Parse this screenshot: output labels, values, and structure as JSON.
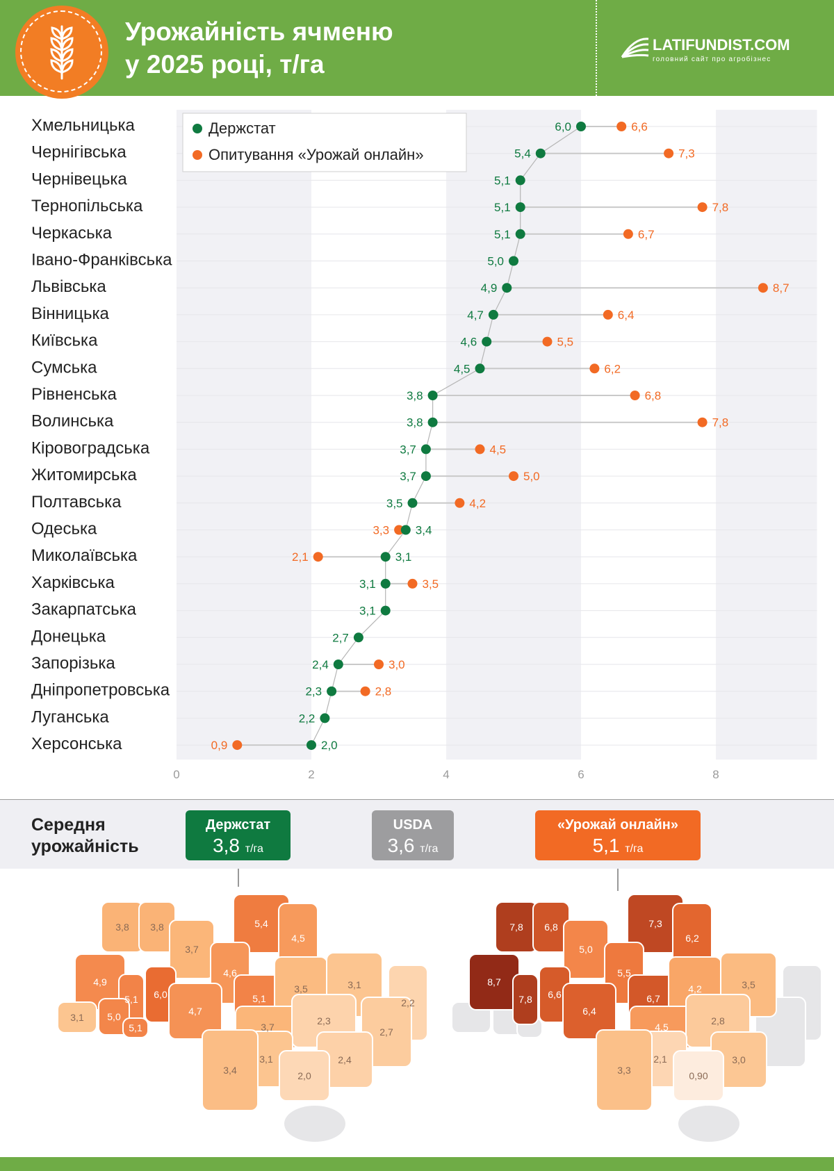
{
  "header": {
    "title_line1": "Урожайність ячменю",
    "title_line2": "у 2025 році, т/га",
    "brand_name": "LATIFUNDIST.COM",
    "brand_tagline": "головний сайт про агробізнес",
    "icon": "wheat-icon"
  },
  "colors": {
    "green": "#6fac46",
    "derzhstat": "#0f7a40",
    "survey": "#f26a24",
    "usda": "#9d9d9f",
    "connector": "#c9c9c9"
  },
  "chart_data": {
    "type": "dot-plot",
    "xlim": [
      0,
      9.5
    ],
    "x_ticks": [
      0,
      2,
      4,
      6,
      8
    ],
    "legend_position": "top-left",
    "legend": [
      "Держстат",
      "Опитування «Урожай онлайн»"
    ],
    "rows": [
      {
        "region": "Хмельницька",
        "derzhstat": 6.0,
        "derzhstat_label": "6,0",
        "survey": 6.6,
        "survey_label": "6,6"
      },
      {
        "region": "Чернігівська",
        "derzhstat": 5.4,
        "derzhstat_label": "5,4",
        "survey": 7.3,
        "survey_label": "7,3"
      },
      {
        "region": "Чернівецька",
        "derzhstat": 5.1,
        "derzhstat_label": "5,1",
        "survey": null,
        "survey_label": ""
      },
      {
        "region": "Тернопільська",
        "derzhstat": 5.1,
        "derzhstat_label": "5,1",
        "survey": 7.8,
        "survey_label": "7,8"
      },
      {
        "region": "Черкаська",
        "derzhstat": 5.1,
        "derzhstat_label": "5,1",
        "survey": 6.7,
        "survey_label": "6,7"
      },
      {
        "region": "Івано-Франківська",
        "derzhstat": 5.0,
        "derzhstat_label": "5,0",
        "survey": null,
        "survey_label": ""
      },
      {
        "region": "Львівська",
        "derzhstat": 4.9,
        "derzhstat_label": "4,9",
        "survey": 8.7,
        "survey_label": "8,7"
      },
      {
        "region": "Вінницька",
        "derzhstat": 4.7,
        "derzhstat_label": "4,7",
        "survey": 6.4,
        "survey_label": "6,4"
      },
      {
        "region": "Київська",
        "derzhstat": 4.6,
        "derzhstat_label": "4,6",
        "survey": 5.5,
        "survey_label": "5,5"
      },
      {
        "region": "Сумська",
        "derzhstat": 4.5,
        "derzhstat_label": "4,5",
        "survey": 6.2,
        "survey_label": "6,2"
      },
      {
        "region": "Рівненська",
        "derzhstat": 3.8,
        "derzhstat_label": "3,8",
        "survey": 6.8,
        "survey_label": "6,8"
      },
      {
        "region": "Волинська",
        "derzhstat": 3.8,
        "derzhstat_label": "3,8",
        "survey": 7.8,
        "survey_label": "7,8"
      },
      {
        "region": "Кіровоградська",
        "derzhstat": 3.7,
        "derzhstat_label": "3,7",
        "survey": 4.5,
        "survey_label": "4,5"
      },
      {
        "region": "Житомирська",
        "derzhstat": 3.7,
        "derzhstat_label": "3,7",
        "survey": 5.0,
        "survey_label": "5,0"
      },
      {
        "region": "Полтавська",
        "derzhstat": 3.5,
        "derzhstat_label": "3,5",
        "survey": 4.2,
        "survey_label": "4,2"
      },
      {
        "region": "Одеська",
        "derzhstat": 3.4,
        "derzhstat_label": "3,4",
        "survey": 3.3,
        "survey_label": "3,3"
      },
      {
        "region": "Миколаївська",
        "derzhstat": 3.1,
        "derzhstat_label": "3,1",
        "survey": 2.1,
        "survey_label": "2,1"
      },
      {
        "region": "Харківська",
        "derzhstat": 3.1,
        "derzhstat_label": "3,1",
        "survey": 3.5,
        "survey_label": "3,5"
      },
      {
        "region": "Закарпатська",
        "derzhstat": 3.1,
        "derzhstat_label": "3,1",
        "survey": null,
        "survey_label": ""
      },
      {
        "region": "Донецька",
        "derzhstat": 2.7,
        "derzhstat_label": "2,7",
        "survey": null,
        "survey_label": ""
      },
      {
        "region": "Запорізька",
        "derzhstat": 2.4,
        "derzhstat_label": "2,4",
        "survey": 3.0,
        "survey_label": "3,0"
      },
      {
        "region": "Дніпропетровська",
        "derzhstat": 2.3,
        "derzhstat_label": "2,3",
        "survey": 2.8,
        "survey_label": "2,8"
      },
      {
        "region": "Луганська",
        "derzhstat": 2.2,
        "derzhstat_label": "2,2",
        "survey": null,
        "survey_label": ""
      },
      {
        "region": "Херсонська",
        "derzhstat": 2.0,
        "derzhstat_label": "2,0",
        "survey": 0.9,
        "survey_label": "0,9"
      }
    ]
  },
  "average": {
    "label_line1": "Середня",
    "label_line2": "урожайність",
    "unit": "т/га",
    "badges": [
      {
        "name": "Держстат",
        "value": "3,8"
      },
      {
        "name": "USDA",
        "value": "3,6"
      },
      {
        "name": "«Урожай онлайн»",
        "value": "5,1"
      }
    ]
  },
  "maps": {
    "derzhstat": [
      {
        "region": "Волинська",
        "label": "3,8",
        "value": 3.8
      },
      {
        "region": "Рівненська",
        "label": "3,8",
        "value": 3.8
      },
      {
        "region": "Житомирська",
        "label": "3,7",
        "value": 3.7
      },
      {
        "region": "Чернігівська",
        "label": "5,4",
        "value": 5.4
      },
      {
        "region": "Сумська",
        "label": "4,5",
        "value": 4.5
      },
      {
        "region": "Львівська",
        "label": "4,9",
        "value": 4.9
      },
      {
        "region": "Тернопільська",
        "label": "5,1",
        "value": 5.1
      },
      {
        "region": "Хмельницька",
        "label": "6,0",
        "value": 6.0
      },
      {
        "region": "Київська",
        "label": "4,6",
        "value": 4.6
      },
      {
        "region": "Закарпатська",
        "label": "3,1",
        "value": 3.1
      },
      {
        "region": "Івано-Франківська",
        "label": "5,0",
        "value": 5.0
      },
      {
        "region": "Чернівецька",
        "label": "5,1",
        "value": 5.1
      },
      {
        "region": "Вінницька",
        "label": "4,7",
        "value": 4.7
      },
      {
        "region": "Черкаська",
        "label": "5,1",
        "value": 5.1
      },
      {
        "region": "Полтавська",
        "label": "3,5",
        "value": 3.5
      },
      {
        "region": "Харківська",
        "label": "3,1",
        "value": 3.1
      },
      {
        "region": "Луганська",
        "label": "2,2",
        "value": 2.2
      },
      {
        "region": "Кіровоградська",
        "label": "3,7",
        "value": 3.7
      },
      {
        "region": "Дніпропетровська",
        "label": "2,3",
        "value": 2.3
      },
      {
        "region": "Донецька",
        "label": "2,7",
        "value": 2.7
      },
      {
        "region": "Миколаївська",
        "label": "3,1",
        "value": 3.1
      },
      {
        "region": "Одеська",
        "label": "3,4",
        "value": 3.4
      },
      {
        "region": "Запорізька",
        "label": "2,4",
        "value": 2.4
      },
      {
        "region": "Херсонська",
        "label": "2,0",
        "value": 2.0
      }
    ],
    "survey": [
      {
        "region": "Волинська",
        "label": "7,8",
        "value": 7.8
      },
      {
        "region": "Рівненська",
        "label": "6,8",
        "value": 6.8
      },
      {
        "region": "Житомирська",
        "label": "5,0",
        "value": 5.0
      },
      {
        "region": "Чернігівська",
        "label": "7,3",
        "value": 7.3
      },
      {
        "region": "Сумська",
        "label": "6,2",
        "value": 6.2
      },
      {
        "region": "Львівська",
        "label": "8,7",
        "value": 8.7
      },
      {
        "region": "Тернопільська",
        "label": "7,8",
        "value": 7.8
      },
      {
        "region": "Хмельницька",
        "label": "6,6",
        "value": 6.6
      },
      {
        "region": "Київська",
        "label": "5,5",
        "value": 5.5
      },
      {
        "region": "Вінницька",
        "label": "6,4",
        "value": 6.4
      },
      {
        "region": "Черкаська",
        "label": "6,7",
        "value": 6.7
      },
      {
        "region": "Полтавська",
        "label": "4,2",
        "value": 4.2
      },
      {
        "region": "Харківська",
        "label": "3,5",
        "value": 3.5
      },
      {
        "region": "Кіровоградська",
        "label": "4,5",
        "value": 4.5
      },
      {
        "region": "Дніпропетровська",
        "label": "2,8",
        "value": 2.8
      },
      {
        "region": "Миколаївська",
        "label": "2,1",
        "value": 2.1
      },
      {
        "region": "Одеська",
        "label": "3,3",
        "value": 3.3
      },
      {
        "region": "Запорізька",
        "label": "3,0",
        "value": 3.0
      },
      {
        "region": "Херсонська",
        "label": "0,90",
        "value": 0.9
      }
    ]
  }
}
